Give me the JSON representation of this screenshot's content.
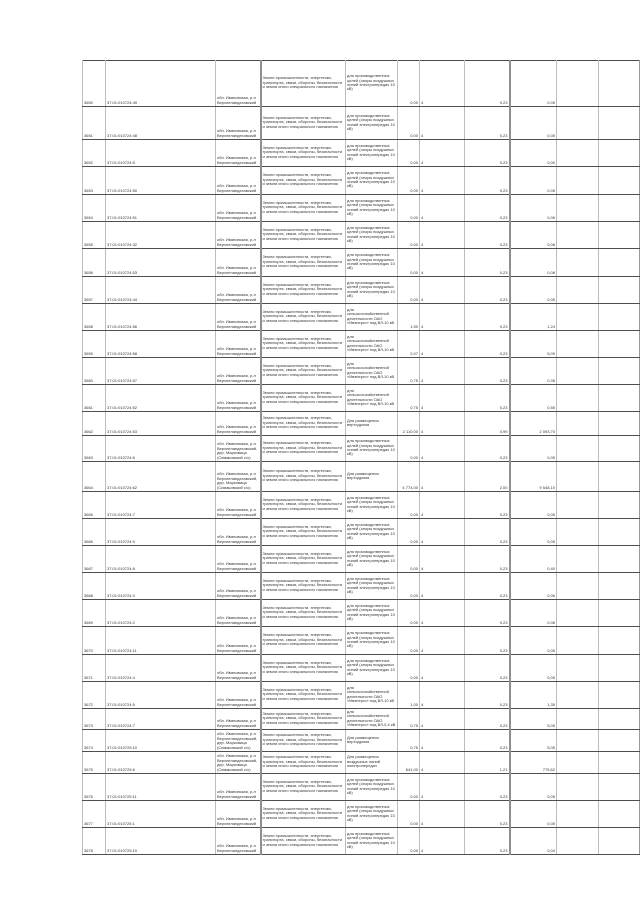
{
  "page": {
    "background": "#ffffff",
    "border_color": "#4f4f4f",
    "thick_rule_color": "#8f8f8f"
  },
  "texts": {
    "loc_std": "обл. Ивановская, р-н Верхнеландеховский",
    "loc_der": "обл. Ивановская, р-н Верхнеландеховский, дер. Марковица (Симаковский с/о)",
    "cat_std": "Земли промышленности, энергетики, транспорта, связи, обороны, безопасности и земли иного специального назначения",
    "purp_prod": "для производственных целей (опоры воздушных линий электропередач 10 кВ)",
    "purp_agro": "для сельскохозяйственной деятельности ОАО «Ивэнерго» под ВЛ-10 кВ",
    "purp_agro04": "для сельскохозяйственной деятельности ОАО «Ивэнерго» под ВЛ-0,4 кВ",
    "purp_avia": "Для размещения вертодрома",
    "purp_wind": "Для размещения воздушных линий электропередач"
  },
  "table": {
    "columns": [
      "num",
      "cadastral",
      "location",
      "category",
      "purpose",
      "area",
      "unit",
      "value1",
      "value2",
      "empty1",
      "empty2"
    ],
    "rows": [
      {
        "h": 46,
        "cells": [
          "3650",
          "37:01:010724:49",
          "$loc_std",
          "$cat_std",
          "$purp_prod",
          "0,00",
          "4",
          "0,23",
          "0,05",
          "",
          ""
        ]
      },
      {
        "h": 33,
        "cells": [
          "3651",
          "37:01:010724:48",
          "$loc_std",
          "$cat_std",
          "$purp_prod",
          "0,00",
          "4",
          "0,23",
          "0,05",
          "",
          ""
        ]
      },
      {
        "h": 27,
        "cells": [
          "3652",
          "37:01:010724:5",
          "$loc_std",
          "$cat_std",
          "$purp_prod",
          "0,00",
          "4",
          "0,23",
          "0,00",
          "",
          ""
        ]
      },
      {
        "h": 28,
        "cells": [
          "3653",
          "37:01:010724:50",
          "$loc_std",
          "$cat_std",
          "$purp_prod",
          "0,00",
          "4",
          "0,23",
          "0,05",
          "",
          ""
        ]
      },
      {
        "h": 27,
        "cells": [
          "3654",
          "37:01:010724:51",
          "$loc_std",
          "$cat_std",
          "$purp_prod",
          "0,00",
          "4",
          "0,23",
          "0,06",
          "",
          ""
        ]
      },
      {
        "h": 27,
        "cells": [
          "3655",
          "37:01:010724:32",
          "$loc_std",
          "$cat_std",
          "$purp_prod",
          "0,00",
          "4",
          "0,23",
          "0,06",
          "",
          ""
        ]
      },
      {
        "h": 28,
        "cells": [
          "3656",
          "37:01:010724:53",
          "$loc_std",
          "$cat_std",
          "$purp_prod",
          "0,00",
          "4",
          "0,23",
          "0,08",
          "",
          ""
        ]
      },
      {
        "h": 27,
        "cells": [
          "3657",
          "37:01:010724:44",
          "$loc_std",
          "$cat_std",
          "$purp_prod",
          "0,00",
          "4",
          "0,23",
          "0,05",
          "",
          ""
        ]
      },
      {
        "h": 27,
        "cells": [
          "3658",
          "37:01:010724:56",
          "$loc_std",
          "$cat_std",
          "$purp_agro",
          "1,50",
          "4",
          "0,23",
          "1,24",
          "",
          ""
        ]
      },
      {
        "h": 27,
        "cells": [
          "3659",
          "37:01:010724:58",
          "$loc_std",
          "$cat_std",
          "$purp_agro",
          "2,07",
          "4",
          "0,23",
          "5,09",
          "",
          ""
        ]
      },
      {
        "h": 27,
        "cells": [
          "3660",
          "37:01:010724:57",
          "$loc_std",
          "$cat_std",
          "$purp_agro",
          "0,75",
          "4",
          "0,23",
          "0,35",
          "",
          ""
        ]
      },
      {
        "h": 27,
        "cells": [
          "3661",
          "37:01:010724:52",
          "$loc_std",
          "$cat_std",
          "$purp_agro",
          "0,75",
          "4",
          "0,23",
          "0,55",
          "",
          ""
        ]
      },
      {
        "h": 24,
        "cells": [
          "3662",
          "37:01:010724:53",
          "$loc_std",
          "$cat_std",
          "$purp_avia",
          "2 110,00",
          "4",
          "0,99",
          "2 093,70",
          "",
          ""
        ]
      },
      {
        "h": 26,
        "cells": [
          "3663",
          "37:01:010724:6",
          "$loc_der",
          "$cat_std",
          "$purp_prod",
          "0,00",
          "4",
          "0,23",
          "0,05",
          "",
          ""
        ]
      },
      {
        "h": 30,
        "cells": [
          "3664",
          "37:01:010724:62",
          "$loc_der",
          "$cat_std",
          "$purp_avia",
          "4 774,00",
          "4",
          "2,00",
          "9 548,10",
          "",
          ""
        ]
      },
      {
        "h": 27,
        "cells": [
          "3665",
          "37:01:010724:7",
          "$loc_std",
          "$cat_std",
          "$purp_prod",
          "0,00",
          "4",
          "0,23",
          "0,05",
          "",
          ""
        ]
      },
      {
        "h": 27,
        "cells": [
          "3666",
          "37:01:010724:9",
          "$loc_std",
          "$cat_std",
          "$purp_prod",
          "0,00",
          "4",
          "0,23",
          "0,05",
          "",
          ""
        ]
      },
      {
        "h": 27,
        "cells": [
          "3667",
          "37:01:010724:8",
          "$loc_std",
          "$cat_std",
          "$purp_prod",
          "0,00",
          "4",
          "0,23",
          "0,40",
          "",
          ""
        ]
      },
      {
        "h": 27,
        "cells": [
          "3668",
          "37:01:010724:3",
          "$loc_std",
          "$cat_std",
          "$purp_prod",
          "0,00",
          "4",
          "0,23",
          "0,06",
          "",
          ""
        ]
      },
      {
        "h": 27,
        "cells": [
          "3669",
          "37:01:010724:2",
          "$loc_std",
          "$cat_std",
          "$purp_prod",
          "0,00",
          "4",
          "0,23",
          "0,06",
          "",
          ""
        ]
      },
      {
        "h": 28,
        "cells": [
          "3670",
          "37:01:010724:11",
          "$loc_std",
          "$cat_std",
          "$purp_prod",
          "0,00",
          "4",
          "0,23",
          "0,05",
          "",
          ""
        ]
      },
      {
        "h": 27,
        "cells": [
          "3671",
          "37:01:010724:4",
          "$loc_std",
          "$cat_std",
          "$purp_prod",
          "0,00",
          "4",
          "0,23",
          "0,05",
          "",
          ""
        ]
      },
      {
        "h": 27,
        "cells": [
          "3672",
          "37:01:010724:5",
          "$loc_std",
          "$cat_std",
          "$purp_agro",
          "1,00",
          "4",
          "0,23",
          "1,35",
          "",
          ""
        ]
      },
      {
        "h": 21,
        "cells": [
          "3673",
          "37:01:010724:7",
          "$loc_std",
          "$cat_std",
          "$purp_agro04",
          "0,75",
          "4",
          "0,23",
          "5,05",
          "",
          ""
        ]
      },
      {
        "h": 22,
        "cells": [
          "3674",
          "37:01:010725:10",
          "$loc_der",
          "$cat_std",
          "$purp_avia",
          "0,75",
          "4",
          "0,23",
          "5,05",
          "",
          ""
        ]
      },
      {
        "h": 22,
        "cells": [
          "3675",
          "37:01:010725:6",
          "$loc_der",
          "$cat_std",
          "$purp_wind",
          "641,00",
          "4",
          "1,21",
          "775,62",
          "",
          ""
        ]
      },
      {
        "h": 27,
        "cells": [
          "3676",
          "37:01:010725:11",
          "$loc_std",
          "$cat_std",
          "$purp_prod",
          "0,00",
          "4",
          "0,23",
          "0,05",
          "",
          ""
        ]
      },
      {
        "h": 27,
        "cells": [
          "3677",
          "37:01:010725:1",
          "$loc_std",
          "$cat_std",
          "$purp_prod",
          "0,00",
          "4",
          "0,23",
          "0,05",
          "",
          ""
        ]
      },
      {
        "h": 27,
        "cells": [
          "3678",
          "37:01:010725:10",
          "$loc_std",
          "$cat_std",
          "$purp_prod",
          "0,00",
          "4",
          "0,23",
          "0,04",
          "",
          ""
        ]
      }
    ]
  }
}
